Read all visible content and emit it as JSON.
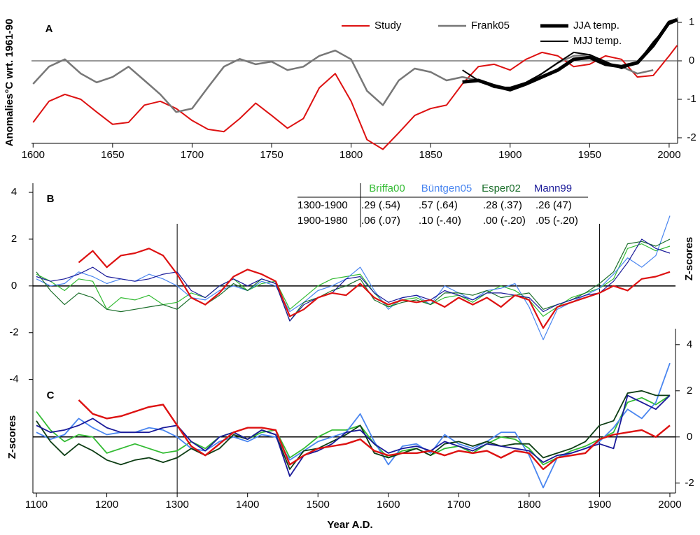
{
  "chart_data": [
    {
      "type": "line",
      "label": "A",
      "ylabel": "Anomalies°C wrt. 1961-90",
      "xlim": [
        1599,
        2004
      ],
      "xticks": [
        1600,
        1650,
        1700,
        1750,
        1800,
        1850,
        1900,
        1950,
        2000
      ],
      "ylim": [
        -2.1,
        1.1
      ],
      "yticks": [
        -2,
        -1,
        0,
        1
      ],
      "zero_line": "#777777",
      "x": [
        1600,
        1610,
        1620,
        1630,
        1640,
        1650,
        1660,
        1670,
        1680,
        1690,
        1700,
        1710,
        1720,
        1730,
        1740,
        1750,
        1760,
        1770,
        1780,
        1790,
        1800,
        1810,
        1820,
        1830,
        1840,
        1850,
        1860,
        1870,
        1880,
        1890,
        1900,
        1910,
        1920,
        1930,
        1940,
        1950,
        1960,
        1970,
        1980,
        1990,
        2000,
        2005
      ],
      "series": [
        {
          "name": "Study",
          "color": "#dd1111",
          "width": 2,
          "values": [
            -1.6,
            -1.05,
            -0.87,
            -1.0,
            -1.33,
            -1.65,
            -1.6,
            -1.15,
            -1.05,
            -1.24,
            -1.55,
            -1.78,
            -1.84,
            -1.5,
            -1.1,
            -1.42,
            -1.75,
            -1.5,
            -0.7,
            -0.33,
            -1.05,
            -2.05,
            -2.3,
            -1.87,
            -1.42,
            -1.24,
            -1.15,
            -0.6,
            -0.15,
            -0.09,
            -0.24,
            0.04,
            0.22,
            0.13,
            -0.15,
            -0.09,
            0.13,
            0.04,
            -0.42,
            -0.38,
            0.13,
            0.4
          ]
        },
        {
          "name": "Frank05",
          "color": "#777777",
          "width": 2.5,
          "values": [
            -0.6,
            -0.15,
            0.04,
            -0.33,
            -0.56,
            -0.42,
            -0.15,
            -0.51,
            -0.87,
            -1.33,
            -1.24,
            -0.69,
            -0.15,
            0.05,
            -0.09,
            -0.02,
            -0.24,
            -0.15,
            0.13,
            0.27,
            0.04,
            -0.78,
            -1.15,
            -0.51,
            -0.2,
            -0.29,
            -0.51,
            -0.42,
            -0.51,
            -0.69,
            -0.75,
            -0.6,
            -0.33,
            -0.05,
            0.13,
            0.16,
            -0.05,
            -0.15,
            -0.33,
            -0.24,
            null,
            null
          ]
        },
        {
          "name": "JJA temp.",
          "color": "#000000",
          "width": 5,
          "values": [
            null,
            null,
            null,
            null,
            null,
            null,
            null,
            null,
            null,
            null,
            null,
            null,
            null,
            null,
            null,
            null,
            null,
            null,
            null,
            null,
            null,
            null,
            null,
            null,
            null,
            null,
            null,
            -0.55,
            -0.51,
            -0.65,
            -0.75,
            -0.6,
            -0.42,
            -0.24,
            0.04,
            0.09,
            -0.09,
            -0.15,
            -0.05,
            0.4,
            1.0,
            1.07
          ]
        },
        {
          "name": "MJJ temp.",
          "color": "#000000",
          "width": 2,
          "values": [
            null,
            null,
            null,
            null,
            null,
            null,
            null,
            null,
            null,
            null,
            null,
            null,
            null,
            null,
            null,
            null,
            null,
            null,
            null,
            null,
            null,
            null,
            null,
            null,
            null,
            null,
            null,
            -0.24,
            -0.51,
            -0.69,
            -0.69,
            -0.56,
            -0.33,
            -0.05,
            0.22,
            0.16,
            -0.02,
            -0.2,
            -0.05,
            0.49,
            0.95,
            1.04
          ]
        }
      ]
    },
    {
      "type": "line",
      "label": "B",
      "ylabel": "Z-scores",
      "xlim": [
        1095,
        2005
      ],
      "ylim": [
        -4.4,
        4.6
      ],
      "yticks": [
        -4,
        -2,
        0,
        2,
        4
      ],
      "zero_line": "#000000",
      "vlines": [
        1300,
        1900
      ],
      "x": [
        1100,
        1120,
        1140,
        1160,
        1180,
        1200,
        1220,
        1240,
        1260,
        1280,
        1300,
        1320,
        1340,
        1360,
        1380,
        1400,
        1420,
        1440,
        1460,
        1480,
        1500,
        1520,
        1540,
        1560,
        1580,
        1600,
        1620,
        1640,
        1660,
        1680,
        1700,
        1720,
        1740,
        1760,
        1780,
        1800,
        1820,
        1840,
        1860,
        1880,
        1900,
        1920,
        1940,
        1960,
        1980,
        2000
      ],
      "series": [
        {
          "name": "Briffa00",
          "color": "#33bb33",
          "width": 1.2,
          "values": [
            0.5,
            0.2,
            -0.2,
            0.3,
            0.2,
            -1.0,
            -0.5,
            -0.6,
            -0.4,
            -0.8,
            -0.7,
            -0.3,
            -0.5,
            0.0,
            0.3,
            -0.2,
            0.1,
            0.2,
            -1.0,
            -0.5,
            0.0,
            0.3,
            0.4,
            0.5,
            -0.3,
            -0.9,
            -0.6,
            -0.5,
            -0.8,
            -0.5,
            -0.4,
            -0.7,
            -0.3,
            0.0,
            -0.2,
            -0.6,
            -1.3,
            -0.9,
            -0.5,
            -0.3,
            -0.1,
            0.3,
            1.6,
            1.8,
            1.5,
            1.7
          ]
        },
        {
          "name": "Büntgen05",
          "color": "#4a86f0",
          "width": 1.2,
          "values": [
            0.3,
            0.0,
            0.1,
            0.6,
            0.4,
            0.1,
            0.3,
            0.2,
            0.5,
            0.3,
            0.0,
            -0.5,
            -0.6,
            -0.2,
            0.0,
            -0.2,
            0.2,
            0.0,
            -1.1,
            -0.7,
            -0.2,
            0.0,
            0.3,
            0.8,
            -0.2,
            -1.0,
            -0.5,
            -0.4,
            -0.8,
            0.0,
            -0.3,
            -0.6,
            -0.2,
            -0.1,
            0.1,
            -0.9,
            -2.3,
            -1.0,
            -0.7,
            -0.4,
            -0.1,
            0.5,
            1.2,
            0.8,
            1.3,
            3.0
          ]
        },
        {
          "name": "Esper02",
          "color": "#1a6e2a",
          "width": 1.2,
          "values": [
            0.6,
            -0.2,
            -0.8,
            -0.3,
            -0.5,
            -1.0,
            -1.1,
            -1.0,
            -0.9,
            -0.8,
            -1.0,
            -0.5,
            -0.8,
            -0.4,
            0.1,
            -0.2,
            0.3,
            0.1,
            -1.5,
            -0.7,
            -0.5,
            -0.2,
            0.0,
            0.3,
            -0.6,
            -0.9,
            -0.7,
            -0.6,
            -0.8,
            -0.3,
            -0.3,
            -0.4,
            -0.2,
            -0.5,
            -0.4,
            -0.3,
            -1.0,
            -0.8,
            -0.6,
            -0.3,
            0.1,
            0.6,
            1.8,
            1.9,
            1.7,
            2.0
          ]
        },
        {
          "name": "Mann99",
          "color": "#1a1a99",
          "width": 1.2,
          "values": [
            0.4,
            0.2,
            0.3,
            0.5,
            0.8,
            0.4,
            0.3,
            0.2,
            0.3,
            0.5,
            0.6,
            -0.2,
            -0.5,
            0.0,
            0.3,
            0.0,
            0.3,
            0.1,
            -1.5,
            -0.8,
            -0.5,
            -0.3,
            0.3,
            0.4,
            -0.3,
            -0.7,
            -0.5,
            -0.4,
            -0.6,
            -0.2,
            -0.4,
            -0.6,
            -0.3,
            -0.3,
            -0.4,
            -0.5,
            -1.1,
            -0.8,
            -0.6,
            -0.4,
            -0.3,
            0.2,
            1.0,
            2.0,
            1.6,
            1.4
          ]
        },
        {
          "color": "#dd1111",
          "width": 2.2,
          "values": [
            null,
            null,
            null,
            1.0,
            1.5,
            0.8,
            1.3,
            1.4,
            1.6,
            1.3,
            0.5,
            -0.5,
            -0.8,
            -0.3,
            0.4,
            0.7,
            0.5,
            0.2,
            -1.3,
            -1.0,
            -0.5,
            -0.3,
            -0.4,
            0.1,
            -0.5,
            -0.8,
            -0.6,
            -0.7,
            -0.6,
            -0.9,
            -0.5,
            -0.8,
            -0.5,
            -0.9,
            -0.4,
            -0.6,
            -1.8,
            -0.9,
            -0.7,
            -0.5,
            -0.3,
            0.0,
            -0.2,
            0.3,
            0.4,
            0.6
          ]
        }
      ],
      "table": {
        "rows": [
          {
            "label": "1300-1900",
            "cells": [
              ".29 (.54)",
              ".57 (.64)",
              ".28 (.37)",
              ".26 (47)"
            ]
          },
          {
            "label": "1900-1980",
            "cells": [
              ".06 (.07)",
              ".10 (-.40)",
              ".00 (-.20)",
              ".05 (-.20)"
            ]
          }
        ]
      }
    },
    {
      "type": "line",
      "label": "C",
      "ylabel": "Z-scores",
      "xlabel": "Year A.D.",
      "xlim": [
        1095,
        2005
      ],
      "xticks": [
        1100,
        1200,
        1300,
        1400,
        1500,
        1600,
        1700,
        1800,
        1900,
        2000
      ],
      "ylim": [
        -2.4,
        4.6
      ],
      "yticks": [
        -2,
        0,
        2,
        4
      ],
      "zero_line": "#000000",
      "x": [
        1100,
        1120,
        1140,
        1160,
        1180,
        1200,
        1220,
        1240,
        1260,
        1280,
        1300,
        1320,
        1340,
        1360,
        1380,
        1400,
        1420,
        1440,
        1460,
        1480,
        1500,
        1520,
        1540,
        1560,
        1580,
        1600,
        1620,
        1640,
        1660,
        1680,
        1700,
        1720,
        1740,
        1760,
        1780,
        1800,
        1820,
        1840,
        1860,
        1880,
        1900,
        1920,
        1940,
        1960,
        1980,
        2000
      ],
      "series": [
        {
          "color": "#33bb33",
          "width": 1.8,
          "values": [
            1.1,
            0.3,
            -0.2,
            0.1,
            0.0,
            -0.7,
            -0.5,
            -0.3,
            -0.5,
            -0.7,
            -0.6,
            -0.2,
            -0.5,
            0.0,
            0.2,
            -0.1,
            0.2,
            0.3,
            -0.9,
            -0.5,
            0.0,
            0.3,
            0.3,
            0.5,
            -0.3,
            -0.9,
            -0.6,
            -0.5,
            -0.8,
            -0.5,
            -0.4,
            -0.7,
            -0.3,
            0.0,
            -0.1,
            -0.5,
            -1.2,
            -0.9,
            -0.6,
            -0.4,
            -0.1,
            0.2,
            1.5,
            1.7,
            1.4,
            1.8
          ]
        },
        {
          "color": "#4a86f0",
          "width": 1.8,
          "values": [
            0.2,
            -0.1,
            0.1,
            0.8,
            0.4,
            0.1,
            0.2,
            0.2,
            0.4,
            0.3,
            0.0,
            -0.5,
            -0.6,
            -0.2,
            0.0,
            -0.2,
            0.1,
            0.0,
            -1.0,
            -0.6,
            -0.2,
            0.0,
            0.2,
            1.0,
            -0.2,
            -1.2,
            -0.4,
            -0.3,
            -0.7,
            0.1,
            -0.3,
            -0.5,
            -0.2,
            0.2,
            0.2,
            -0.8,
            -2.2,
            -0.9,
            -0.7,
            -0.5,
            -0.2,
            0.4,
            1.2,
            0.8,
            1.5,
            3.2
          ]
        },
        {
          "color": "#0d3d14",
          "width": 1.8,
          "values": [
            0.7,
            -0.2,
            -0.8,
            -0.3,
            -0.6,
            -1.0,
            -1.2,
            -1.0,
            -0.9,
            -1.1,
            -0.9,
            -0.5,
            -0.8,
            -0.5,
            0.1,
            -0.1,
            0.3,
            0.1,
            -1.4,
            -0.6,
            -0.5,
            -0.2,
            0.1,
            0.5,
            -0.7,
            -0.9,
            -0.7,
            -0.5,
            -0.8,
            -0.3,
            -0.2,
            -0.4,
            -0.2,
            -0.4,
            -0.3,
            -0.3,
            -0.9,
            -0.7,
            -0.5,
            -0.2,
            0.5,
            0.7,
            1.9,
            2.0,
            1.8,
            1.8
          ]
        },
        {
          "color": "#1a1a99",
          "width": 1.8,
          "values": [
            0.5,
            0.2,
            0.3,
            0.5,
            0.8,
            0.4,
            0.2,
            0.2,
            0.2,
            0.4,
            0.5,
            -0.2,
            -0.6,
            0.0,
            0.2,
            -0.1,
            0.3,
            0.1,
            -1.7,
            -0.8,
            -0.6,
            -0.3,
            0.2,
            0.3,
            -0.3,
            -0.7,
            -0.5,
            -0.4,
            -0.6,
            -0.2,
            -0.4,
            -0.6,
            -0.3,
            -0.4,
            -0.5,
            -0.6,
            -1.1,
            -0.8,
            -0.7,
            -0.5,
            -0.3,
            -0.5,
            1.8,
            1.5,
            1.2,
            1.8
          ]
        },
        {
          "color": "#dd1111",
          "width": 2.4,
          "values": [
            null,
            null,
            null,
            1.6,
            1.0,
            0.8,
            0.9,
            1.1,
            1.3,
            1.4,
            0.5,
            -0.4,
            -0.8,
            -0.3,
            0.2,
            0.4,
            0.4,
            0.3,
            -1.2,
            -0.8,
            -0.5,
            -0.4,
            -0.3,
            -0.1,
            -0.6,
            -0.8,
            -0.7,
            -0.7,
            -0.6,
            -0.8,
            -0.6,
            -0.7,
            -0.6,
            -0.9,
            -0.6,
            -0.7,
            -1.4,
            -0.9,
            -0.8,
            -0.7,
            -0.1,
            0.1,
            0.2,
            0.3,
            0.0,
            0.5
          ]
        }
      ]
    }
  ]
}
